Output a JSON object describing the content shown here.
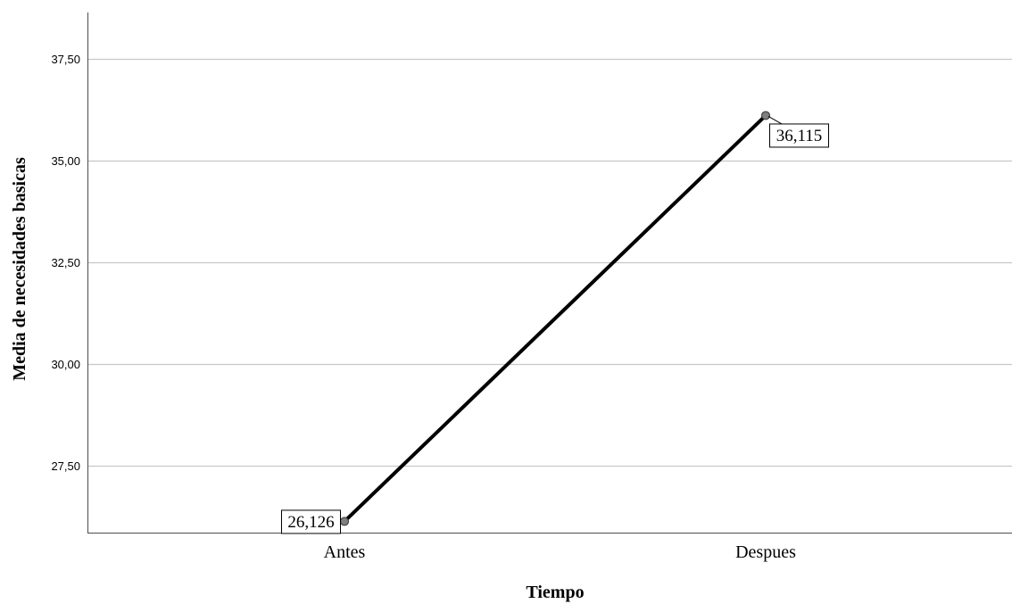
{
  "chart_data": {
    "type": "line",
    "title": "",
    "xlabel": "Tiempo",
    "ylabel": "Media de necesidades basicas",
    "categories": [
      "Antes",
      "Despues"
    ],
    "series": [
      {
        "values": [
          26.126,
          36.115
        ],
        "data_labels": [
          "26,126",
          "36,115"
        ]
      }
    ],
    "ylim": [
      25.85,
      38.65
    ],
    "yticks": [
      27.5,
      30.0,
      32.5,
      35.0,
      37.5
    ],
    "ytick_labels": [
      "27,50",
      "30,00",
      "32,50",
      "35,00",
      "37,50"
    ],
    "grid": true,
    "legend": "none",
    "colors": {
      "line": "#000000",
      "marker_fill": "#7f7f7f",
      "gridline": "#c8c8c8",
      "axis": "#4d4d4d"
    }
  }
}
